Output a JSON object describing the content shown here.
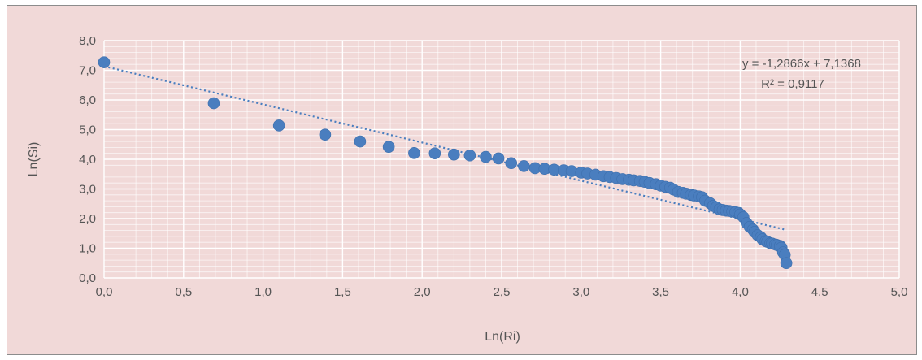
{
  "chart_data": {
    "type": "scatter",
    "xlabel": "Ln(Ri)",
    "ylabel": "Ln(Si)",
    "xlim": [
      0,
      5
    ],
    "ylim": [
      0,
      8
    ],
    "xticks": [
      "0,0",
      "0,5",
      "1,0",
      "1,5",
      "2,0",
      "2,5",
      "3,0",
      "3,5",
      "4,0",
      "4,5",
      "5,0"
    ],
    "yticks": [
      "0,0",
      "1,0",
      "2,0",
      "3,0",
      "4,0",
      "5,0",
      "6,0",
      "7,0",
      "8,0"
    ],
    "grid": true,
    "colors": {
      "marker": "#4a7ebf",
      "trendline": "#4a7ebf",
      "grid": "#ffffff",
      "background": "#f1d9d8"
    },
    "trendline": {
      "slope": -1.2866,
      "intercept": 7.1368,
      "x_range": [
        0,
        4.28
      ],
      "equation": "y = -1,2866x + 7,1368",
      "r_squared": "R² = 0,9117"
    },
    "x": [
      0.0,
      0.69,
      1.1,
      1.39,
      1.61,
      1.79,
      1.95,
      2.08,
      2.2,
      2.3,
      2.4,
      2.48,
      2.56,
      2.64,
      2.71,
      2.77,
      2.83,
      2.89,
      2.94,
      3.0,
      3.04,
      3.09,
      3.14,
      3.18,
      3.22,
      3.26,
      3.3,
      3.33,
      3.37,
      3.4,
      3.43,
      3.47,
      3.5,
      3.53,
      3.56,
      3.58,
      3.61,
      3.64,
      3.66,
      3.69,
      3.71,
      3.74,
      3.76,
      3.78,
      3.81,
      3.83,
      3.85,
      3.87,
      3.89,
      3.91,
      3.93,
      3.95,
      3.97,
      3.99,
      4.0,
      4.02,
      4.04,
      4.06,
      4.08,
      4.09,
      4.11,
      4.13,
      4.14,
      4.16,
      4.17,
      4.19,
      4.2,
      4.22,
      4.23,
      4.25,
      4.26,
      4.27,
      4.28,
      4.29
    ],
    "y": [
      7.27,
      5.89,
      5.14,
      4.83,
      4.6,
      4.42,
      4.21,
      4.2,
      4.16,
      4.13,
      4.08,
      4.03,
      3.87,
      3.77,
      3.7,
      3.68,
      3.65,
      3.63,
      3.6,
      3.55,
      3.52,
      3.48,
      3.43,
      3.4,
      3.37,
      3.33,
      3.31,
      3.29,
      3.27,
      3.24,
      3.2,
      3.16,
      3.11,
      3.07,
      3.04,
      2.98,
      2.9,
      2.87,
      2.84,
      2.8,
      2.78,
      2.75,
      2.72,
      2.6,
      2.52,
      2.43,
      2.38,
      2.31,
      2.29,
      2.27,
      2.26,
      2.24,
      2.22,
      2.19,
      2.14,
      2.05,
      1.85,
      1.72,
      1.63,
      1.55,
      1.44,
      1.37,
      1.3,
      1.24,
      1.22,
      1.17,
      1.16,
      1.13,
      1.11,
      1.08,
      1.02,
      0.86,
      0.78,
      0.5
    ]
  }
}
